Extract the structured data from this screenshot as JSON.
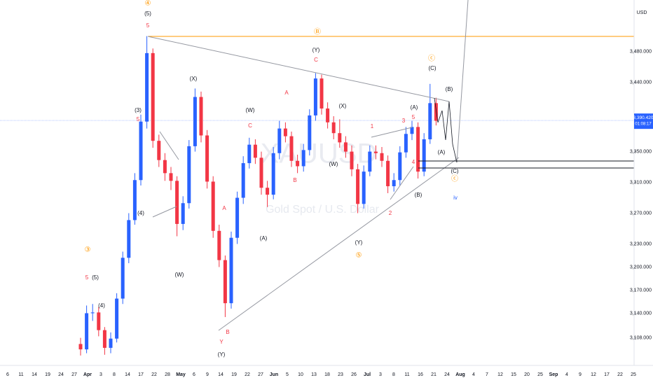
{
  "chart_data": {
    "type": "candlestick",
    "symbol": "XAUUSD",
    "description": "Gold Spot / U.S. Dollar",
    "currency": "USD",
    "up_color": "#2962ff",
    "down_color": "#f23645",
    "grid": false,
    "ylim": [
      3074,
      3547
    ],
    "yticks": [
      {
        "value": 3108,
        "label": "3,108.000"
      },
      {
        "value": 3140,
        "label": "3,140.000"
      },
      {
        "value": 3170,
        "label": "3,170.000"
      },
      {
        "value": 3200,
        "label": "3,200.000"
      },
      {
        "value": 3230,
        "label": "3,230.000"
      },
      {
        "value": 3270,
        "label": "3,270.000"
      },
      {
        "value": 3310,
        "label": "3,310.000"
      },
      {
        "value": 3350,
        "label": "3,350.000"
      },
      {
        "value": 3440,
        "label": "3,440.000"
      },
      {
        "value": 3480,
        "label": "3,480.000"
      }
    ],
    "last_price": {
      "value": 3390.42,
      "label": "3,390.420"
    },
    "countdown": "01:08:17",
    "xlabels": [
      "6",
      "11",
      "14",
      "19",
      "24",
      "27",
      "Apr",
      "3",
      "8",
      "14",
      "17",
      "22",
      "28",
      "May",
      "6",
      "9",
      "14",
      "19",
      "22",
      "27",
      "Jun",
      "5",
      "10",
      "13",
      "18",
      "23",
      "26",
      "Jul",
      "3",
      "8",
      "11",
      "16",
      "21",
      "24",
      "Aug",
      "4",
      "7",
      "12",
      "15",
      "20",
      "25",
      "Sep",
      "4",
      "9",
      "12",
      "17",
      "22",
      "25"
    ],
    "open": [
      3100,
      3093,
      3140,
      3141,
      3118,
      3095,
      3107,
      3159,
      3212,
      3261,
      3313,
      3389,
      3478,
      3364,
      3339,
      3322,
      3312,
      3256,
      3283,
      3357,
      3421,
      3371,
      3311,
      3247,
      3209,
      3153,
      3238,
      3290,
      3335,
      3359,
      3342,
      3303,
      3294,
      3348,
      3380,
      3370,
      3338,
      3331,
      3352,
      3397,
      3445,
      3406,
      3388,
      3374,
      3362,
      3350,
      3327,
      3282,
      3324,
      3350,
      3348,
      3338,
      3305,
      3313,
      3349,
      3373,
      3382,
      3324,
      3366,
      3413
    ],
    "high": [
      3108,
      3150,
      3152,
      3148,
      3122,
      3115,
      3166,
      3220,
      3270,
      3322,
      3398,
      3500,
      3484,
      3372,
      3348,
      3330,
      3318,
      3292,
      3365,
      3432,
      3428,
      3378,
      3318,
      3255,
      3215,
      3246,
      3298,
      3344,
      3368,
      3366,
      3350,
      3312,
      3356,
      3390,
      3388,
      3376,
      3346,
      3360,
      3405,
      3452,
      3450,
      3414,
      3396,
      3392,
      3370,
      3358,
      3334,
      3332,
      3358,
      3358,
      3356,
      3345,
      3322,
      3357,
      3382,
      3390,
      3388,
      3374,
      3438,
      3420
    ],
    "low": [
      3085,
      3088,
      3130,
      3110,
      3086,
      3088,
      3102,
      3152,
      3205,
      3255,
      3306,
      3380,
      3355,
      3330,
      3312,
      3300,
      3240,
      3248,
      3276,
      3350,
      3362,
      3302,
      3238,
      3200,
      3135,
      3146,
      3230,
      3282,
      3328,
      3334,
      3294,
      3278,
      3288,
      3340,
      3362,
      3330,
      3322,
      3324,
      3345,
      3390,
      3398,
      3380,
      3366,
      3355,
      3342,
      3318,
      3270,
      3276,
      3318,
      3340,
      3330,
      3296,
      3298,
      3306,
      3342,
      3365,
      3315,
      3318,
      3360,
      3384
    ],
    "close": [
      3093,
      3140,
      3141,
      3118,
      3095,
      3107,
      3159,
      3212,
      3261,
      3313,
      3389,
      3478,
      3364,
      3339,
      3322,
      3312,
      3256,
      3283,
      3357,
      3421,
      3371,
      3311,
      3247,
      3209,
      3153,
      3238,
      3290,
      3335,
      3359,
      3342,
      3303,
      3294,
      3348,
      3380,
      3370,
      3338,
      3331,
      3352,
      3397,
      3445,
      3406,
      3388,
      3374,
      3362,
      3350,
      3327,
      3282,
      3324,
      3350,
      3348,
      3338,
      3305,
      3313,
      3349,
      3373,
      3382,
      3324,
      3366,
      3413,
      3390
    ],
    "annotations": [
      "④",
      "(5)",
      "5",
      "Ⓑ",
      "(Y)",
      "C",
      "(X)",
      "A",
      "(W)",
      "C",
      "(3)",
      "5",
      "(4)",
      "(W)",
      "③",
      "(5)",
      "5",
      "(4)",
      "A",
      "B",
      "Y",
      "(Y)",
      "(A)",
      "B",
      "(X)",
      "(W)",
      "(Y)",
      "⑤",
      "1",
      "2",
      "3",
      "4",
      "5",
      "(A)",
      "(B)",
      "ⓒ",
      "(C)",
      "(B)",
      "(A)",
      "(C)",
      "ⓒ",
      "iv"
    ]
  }
}
